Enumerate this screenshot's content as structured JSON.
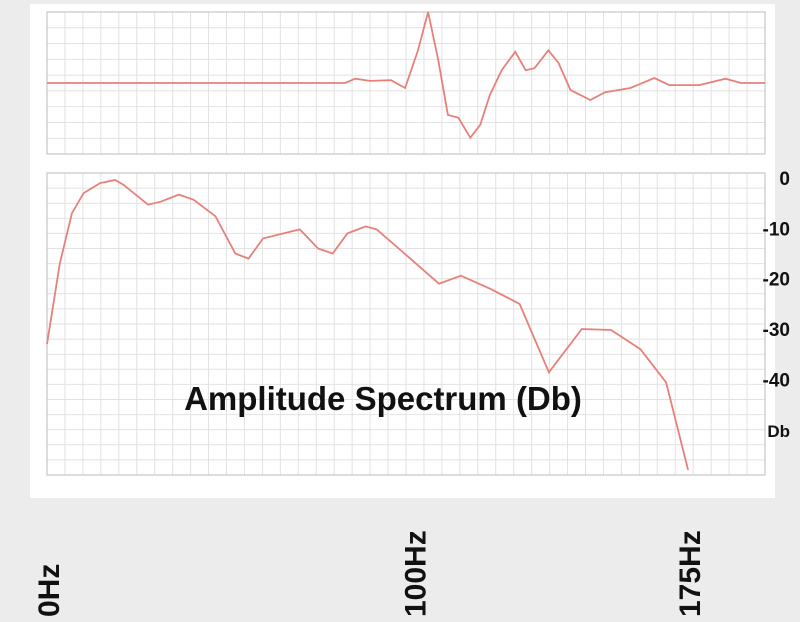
{
  "chart_data": [
    {
      "type": "line",
      "x": [
        -128,
        -28.3,
        -25,
        -20,
        -13,
        -8.3,
        -4,
        -0.6,
        2.8,
        6,
        9.5,
        13.5,
        16.8,
        20,
        24,
        28.5,
        32,
        35,
        39.6,
        43,
        47,
        53.6,
        58.6,
        67,
        75,
        80,
        90,
        98.8,
        104,
        112
      ],
      "values": [
        0,
        0,
        0.06,
        0.03,
        0.04,
        -0.07,
        0.46,
        1.0,
        0.32,
        -0.45,
        -0.49,
        -0.77,
        -0.59,
        -0.17,
        0.18,
        0.44,
        0.18,
        0.21,
        0.46,
        0.28,
        -0.1,
        -0.24,
        -0.13,
        -0.07,
        0.07,
        -0.03,
        -0.03,
        0.06,
        0,
        0
      ],
      "color": "#e8807a",
      "xlim": [
        -128,
        112
      ],
      "ylim": [
        -1,
        1
      ]
    },
    {
      "type": "line",
      "annotation": "Amplitude Spectrum (Db)",
      "ylabel": "Db",
      "x": [
        0,
        3.5,
        6.8,
        10,
        14.5,
        18.6,
        21,
        27.6,
        31,
        36,
        40,
        46,
        51.4,
        55,
        59,
        69,
        74,
        78,
        82,
        87,
        90,
        96,
        107,
        113,
        121,
        129,
        137,
        146,
        154,
        162,
        169,
        175
      ],
      "values": [
        -33,
        -17,
        -7,
        -3,
        -1,
        -0.4,
        -1.4,
        -5.3,
        -4.7,
        -3.3,
        -4.3,
        -7.6,
        -15,
        -16,
        -12,
        -10.2,
        -14,
        -15,
        -11,
        -9.6,
        -10.2,
        -14,
        -21,
        -19.4,
        -22,
        -25,
        -38.6,
        -30,
        -30.2,
        -34,
        -40.6,
        -58
      ],
      "color": "#e8807a",
      "xlim": [
        0,
        196
      ],
      "ylim": [
        -59,
        1
      ],
      "yticks": [
        0,
        -10,
        -20,
        -30,
        -40
      ],
      "xticks": [
        {
          "value": 0,
          "label": "0Hz"
        },
        {
          "value": 100,
          "label": "100Hz"
        },
        {
          "value": 175,
          "label": "175Hz"
        }
      ]
    }
  ]
}
